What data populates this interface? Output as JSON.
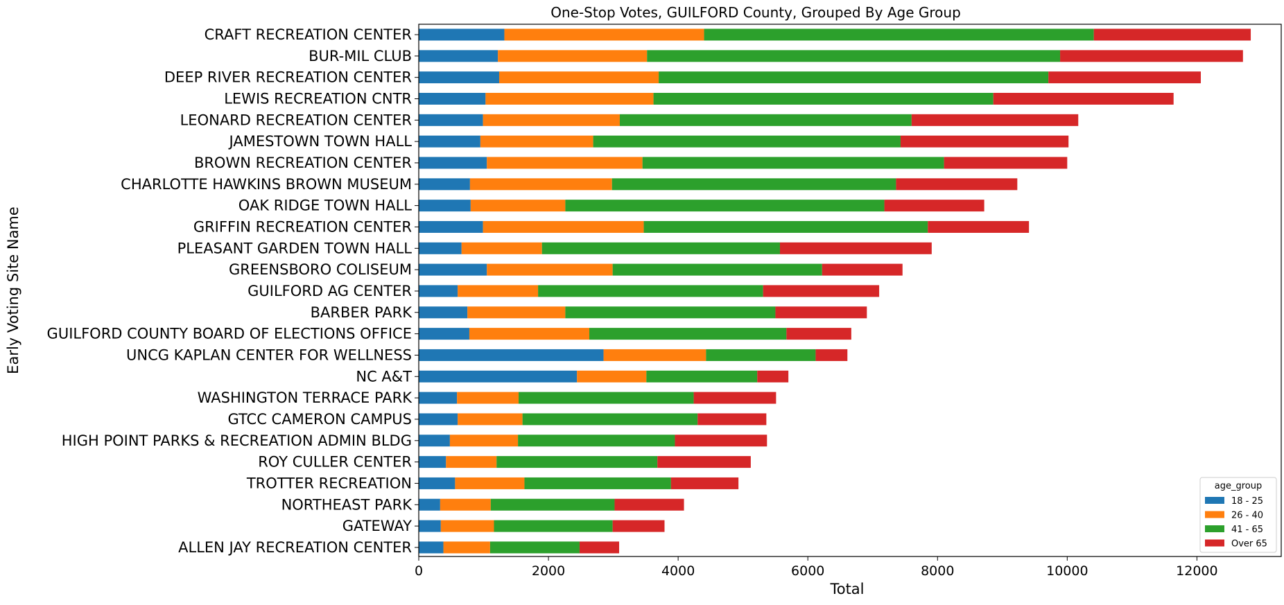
{
  "chart_data": {
    "type": "bar",
    "orientation": "horizontal",
    "stacked": true,
    "title": "One-Stop Votes, GUILFORD County, Grouped By Age Group",
    "xlabel": "Total",
    "ylabel": "Early Voting Site Name",
    "xlim": [
      0,
      13300
    ],
    "xticks": [
      0,
      2000,
      4000,
      6000,
      8000,
      10000,
      12000
    ],
    "grid": false,
    "legend": {
      "title": "age_group",
      "position": "lower-right"
    },
    "categories": [
      "CRAFT RECREATION CENTER",
      "BUR-MIL CLUB",
      "DEEP RIVER RECREATION CENTER",
      "LEWIS RECREATION CNTR",
      "LEONARD RECREATION CENTER",
      "JAMESTOWN TOWN HALL",
      "BROWN RECREATION CENTER",
      "CHARLOTTE HAWKINS BROWN MUSEUM",
      "OAK RIDGE TOWN HALL",
      "GRIFFIN RECREATION CENTER",
      "PLEASANT GARDEN TOWN HALL",
      "GREENSBORO COLISEUM",
      "GUILFORD AG CENTER",
      "BARBER PARK",
      "GUILFORD COUNTY BOARD OF ELECTIONS OFFICE",
      "UNCG KAPLAN CENTER FOR WELLNESS",
      "NC A&T",
      "WASHINGTON TERRACE PARK",
      "GTCC CAMERON CAMPUS",
      "HIGH POINT PARKS & RECREATION ADMIN BLDG",
      "ROY CULLER CENTER",
      "TROTTER RECREATION",
      "NORTHEAST PARK",
      "GATEWAY",
      "ALLEN JAY RECREATION CENTER"
    ],
    "series": [
      {
        "name": "18 - 25",
        "color": "#1f77b4",
        "values": [
          1320,
          1220,
          1240,
          1030,
          990,
          950,
          1050,
          790,
          800,
          990,
          660,
          1050,
          600,
          750,
          780,
          2850,
          2440,
          590,
          600,
          480,
          420,
          560,
          330,
          340,
          380
        ]
      },
      {
        "name": "26 - 40",
        "color": "#ff7f0e",
        "values": [
          3080,
          2300,
          2460,
          2590,
          2110,
          1740,
          2400,
          2190,
          1460,
          2480,
          1240,
          1940,
          1240,
          1510,
          1850,
          1580,
          1070,
          950,
          1000,
          1050,
          780,
          1070,
          780,
          820,
          720
        ]
      },
      {
        "name": "41 - 65",
        "color": "#2ca02c",
        "values": [
          6010,
          6370,
          6010,
          5240,
          4500,
          4740,
          4650,
          4380,
          4920,
          4380,
          3670,
          3230,
          3470,
          3240,
          3040,
          1690,
          1710,
          2700,
          2700,
          2420,
          2480,
          2260,
          1910,
          1830,
          1380
        ]
      },
      {
        "name": "Over 65",
        "color": "#d62728",
        "values": [
          2420,
          2820,
          2350,
          2780,
          2570,
          2590,
          1900,
          1870,
          1540,
          1560,
          2340,
          1240,
          1790,
          1410,
          1000,
          490,
          480,
          1270,
          1060,
          1420,
          1440,
          1040,
          1070,
          800,
          610
        ]
      }
    ]
  }
}
